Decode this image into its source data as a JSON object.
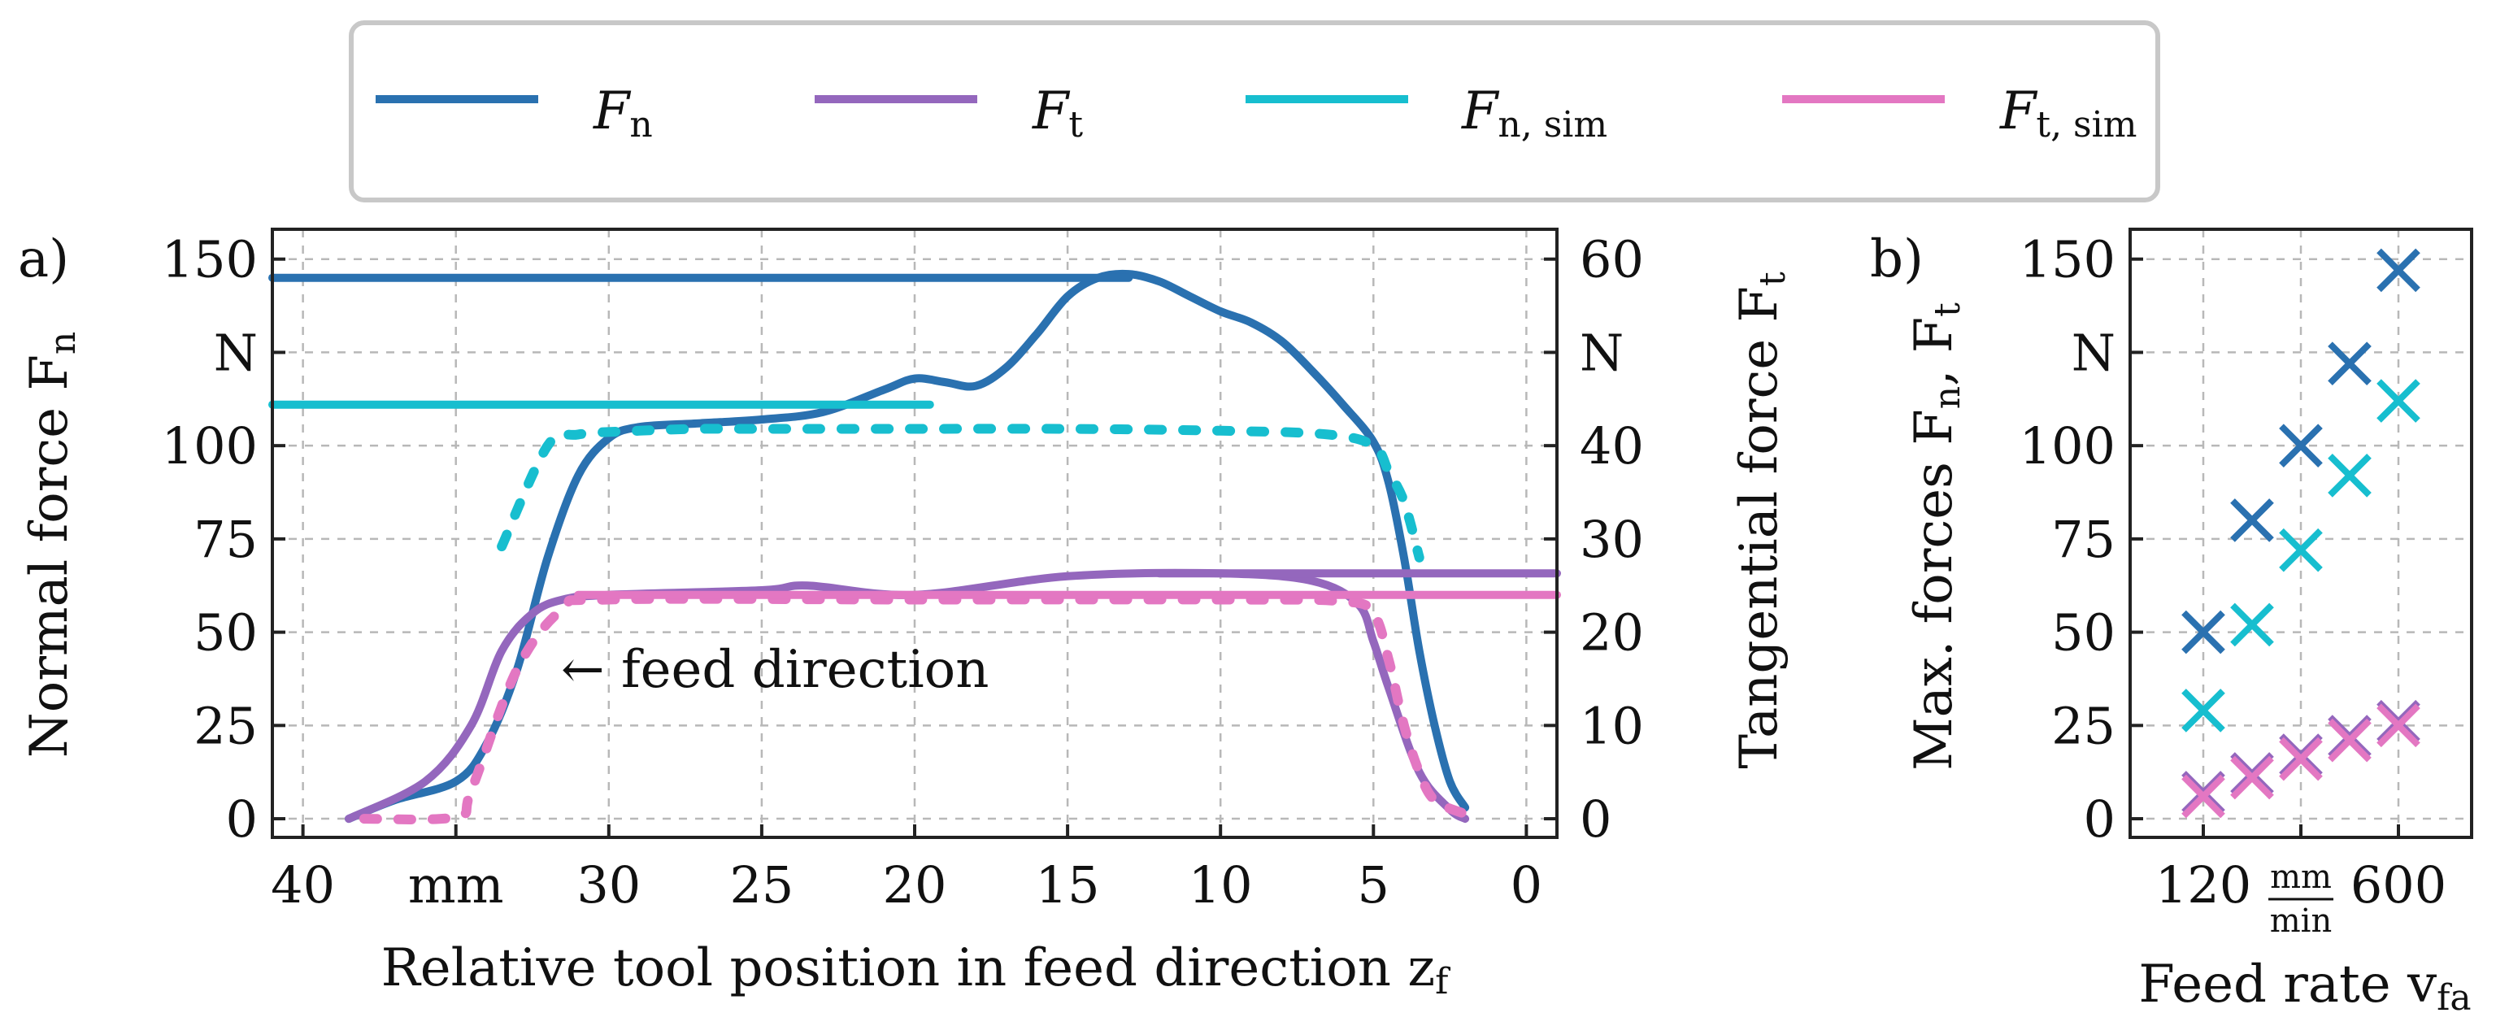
{
  "legend": {
    "items": [
      {
        "key": "fn",
        "symbol": "F",
        "sub": "n",
        "color": "#2a71b0"
      },
      {
        "key": "ft",
        "symbol": "F",
        "sub": "t",
        "color": "#9467bd"
      },
      {
        "key": "fnsim",
        "symbol": "F",
        "sub": "n, sim",
        "color": "#17becf"
      },
      {
        "key": "ftsim",
        "symbol": "F",
        "sub": "t, sim",
        "color": "#e377c2"
      }
    ]
  },
  "chart_data": [
    {
      "id": "a",
      "type": "line",
      "panel_label": "a)",
      "xlabel": "Relative tool position in feed direction z",
      "xlabel_sub": "f",
      "ylabel_left": "Normal force F",
      "ylabel_left_sub": "n",
      "ylabel_right": "Tangential force F",
      "ylabel_right_sub": "t",
      "xlim": [
        41,
        -1
      ],
      "ylim_left": [
        -5,
        158
      ],
      "ylim_right": [
        -2,
        63.2
      ],
      "x_ticks": [
        {
          "v": 40,
          "label": "40"
        },
        {
          "v": 35,
          "label": "mm"
        },
        {
          "v": 30,
          "label": "30"
        },
        {
          "v": 25,
          "label": "25"
        },
        {
          "v": 20,
          "label": "20"
        },
        {
          "v": 15,
          "label": "15"
        },
        {
          "v": 10,
          "label": "10"
        },
        {
          "v": 5,
          "label": "5"
        },
        {
          "v": 0,
          "label": "0"
        }
      ],
      "y_ticks_left": [
        {
          "v": 150,
          "label": "150"
        },
        {
          "v": 125,
          "label": "N"
        },
        {
          "v": 100,
          "label": "100"
        },
        {
          "v": 75,
          "label": "75"
        },
        {
          "v": 50,
          "label": "50"
        },
        {
          "v": 25,
          "label": "25"
        },
        {
          "v": 0,
          "label": "0"
        }
      ],
      "y_ticks_right": [
        {
          "v": 60,
          "label": "60"
        },
        {
          "v": 50,
          "label": "N"
        },
        {
          "v": 40,
          "label": "40"
        },
        {
          "v": 30,
          "label": "30"
        },
        {
          "v": 20,
          "label": "20"
        },
        {
          "v": 10,
          "label": "10"
        },
        {
          "v": 0,
          "label": "0"
        }
      ],
      "annotation": "← feed direction",
      "series": [
        {
          "name": "F_n",
          "axis": "left",
          "style": "solid",
          "x": [
            38.5,
            37,
            35,
            34,
            33,
            32,
            31,
            30,
            29,
            27,
            25,
            23,
            21,
            20,
            19,
            18,
            17,
            16,
            15,
            14,
            13,
            12,
            11,
            10,
            9,
            8,
            7,
            6,
            5,
            4.5,
            4,
            3.5,
            3,
            2.5,
            2
          ],
          "y": [
            0,
            5,
            10,
            20,
            40,
            70,
            92,
            102,
            105,
            106,
            107,
            109,
            115,
            118,
            117,
            116,
            121,
            130,
            140,
            145,
            146,
            144,
            140,
            136,
            133,
            128,
            120,
            111,
            101,
            90,
            70,
            45,
            25,
            10,
            3
          ]
        },
        {
          "name": "F_n max",
          "axis": "left",
          "style": "solid",
          "x": [
            41,
            13
          ],
          "y": [
            145,
            145
          ]
        },
        {
          "name": "F_t",
          "axis": "right",
          "style": "solid",
          "x": [
            38.5,
            36,
            34.5,
            33.5,
            32.5,
            31.5,
            30,
            25,
            23.5,
            20,
            15,
            10,
            7,
            5.5,
            5,
            4.5,
            3.5,
            2.5,
            2
          ],
          "y": [
            0,
            4,
            10,
            18,
            22,
            23.5,
            24,
            24.5,
            25,
            24,
            26,
            26.3,
            25.5,
            23,
            19,
            14,
            5,
            1,
            0
          ]
        },
        {
          "name": "F_t max",
          "axis": "right",
          "style": "solid",
          "x": [
            12,
            -1
          ],
          "y": [
            26.3,
            26.3
          ]
        },
        {
          "name": "F_n,sim",
          "axis": "left",
          "style": "dashed",
          "x": [
            33.5,
            32,
            31,
            29,
            27,
            25,
            20,
            15,
            10,
            6.5,
            5,
            4.5,
            4,
            3.5
          ],
          "y": [
            73,
            100,
            103,
            104,
            104.5,
            104.5,
            104.5,
            104.5,
            104,
            103,
            100,
            93,
            85,
            70
          ]
        },
        {
          "name": "F_n,sim max",
          "axis": "left",
          "style": "solid",
          "x": [
            41,
            19.5
          ],
          "y": [
            111,
            111
          ]
        },
        {
          "name": "F_t,sim",
          "axis": "right",
          "style": "dashed",
          "x": [
            38,
            35,
            34.5,
            33,
            31.5,
            30,
            20,
            10,
            6,
            5,
            4.5,
            4,
            3.5,
            3,
            2,
            1.5
          ],
          "y": [
            0,
            0.2,
            3,
            16,
            22.5,
            23.5,
            23.5,
            23.5,
            23.3,
            22,
            17,
            10,
            5,
            2,
            0.5,
            0
          ]
        },
        {
          "name": "F_t,sim max",
          "axis": "right",
          "style": "solid",
          "x": [
            31,
            -1
          ],
          "y": [
            24,
            24
          ]
        }
      ]
    },
    {
      "id": "b",
      "type": "scatter",
      "panel_label": "b)",
      "xlabel": "Feed rate v",
      "xlabel_sub": "fa",
      "ylabel": "Max. forces F",
      "ylabel_sub1": "n",
      "ylabel_mid": ", F",
      "ylabel_sub2": "t",
      "ylim": [
        -5,
        158
      ],
      "x_ticks": [
        {
          "v": 120,
          "label": "120"
        },
        {
          "v": 360,
          "label": "mm/min"
        },
        {
          "v": 600,
          "label": "600"
        }
      ],
      "unit_num": "mm",
      "unit_den": "min",
      "y_ticks": [
        {
          "v": 150,
          "label": "150"
        },
        {
          "v": 125,
          "label": "N"
        },
        {
          "v": 100,
          "label": "100"
        },
        {
          "v": 75,
          "label": "75"
        },
        {
          "v": 50,
          "label": "50"
        },
        {
          "v": 25,
          "label": "25"
        },
        {
          "v": 0,
          "label": "0"
        }
      ],
      "x": [
        120,
        240,
        360,
        480,
        600
      ],
      "series": [
        {
          "name": "F_n",
          "values": [
            50,
            80,
            100,
            122,
            147
          ]
        },
        {
          "name": "F_n,sim",
          "values": [
            29,
            52,
            72,
            92,
            112
          ]
        },
        {
          "name": "F_t",
          "values": [
            7,
            12,
            17,
            22,
            26
          ]
        },
        {
          "name": "F_t,sim",
          "values": [
            6,
            11,
            16,
            21,
            25
          ]
        }
      ]
    }
  ]
}
